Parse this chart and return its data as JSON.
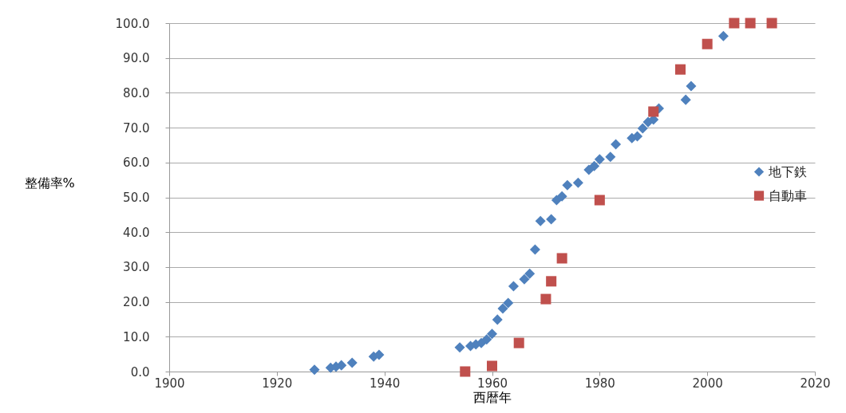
{
  "chart_data": {
    "type": "scatter",
    "xlabel": "西暦年",
    "ylabel": "整備率%",
    "xlim": [
      1900,
      2020
    ],
    "xticks": [
      1900,
      1920,
      1940,
      1960,
      1980,
      2000,
      2020
    ],
    "ylim": [
      0,
      100
    ],
    "yticks": [
      {
        "value": 0,
        "label": "0.0"
      },
      {
        "value": 10,
        "label": "10.0"
      },
      {
        "value": 20,
        "label": "20.0"
      },
      {
        "value": 30,
        "label": "30.0"
      },
      {
        "value": 40,
        "label": "40.0"
      },
      {
        "value": 50,
        "label": "50.0"
      },
      {
        "value": 60,
        "label": "60.0"
      },
      {
        "value": 70,
        "label": "70.0"
      },
      {
        "value": 80,
        "label": "80.0"
      },
      {
        "value": 90,
        "label": "90.0"
      },
      {
        "value": 100,
        "label": "100.0"
      }
    ],
    "grid": "y",
    "legend": "right",
    "series": [
      {
        "name": "地下鉄",
        "color": "#4f81bd",
        "marker": "diamond",
        "x": [
          1927,
          1930,
          1931,
          1932,
          1934,
          1938,
          1939,
          1954,
          1956,
          1957,
          1958,
          1959,
          1960,
          1961,
          1962,
          1963,
          1964,
          1966,
          1967,
          1968,
          1969,
          1971,
          1972,
          1973,
          1974,
          1976,
          1978,
          1979,
          1980,
          1982,
          1983,
          1986,
          1987,
          1988,
          1989,
          1990,
          1991,
          1996,
          1997,
          2003
        ],
        "values": [
          0.5,
          1.1,
          1.4,
          1.8,
          2.5,
          4.3,
          4.8,
          6.9,
          7.3,
          7.8,
          8.2,
          9.2,
          10.8,
          14.9,
          18.1,
          19.7,
          24.5,
          26.5,
          28.1,
          35.0,
          43.2,
          43.7,
          49.2,
          50.3,
          53.5,
          54.2,
          57.9,
          59.0,
          60.9,
          61.6,
          65.2,
          67.0,
          67.5,
          69.8,
          71.6,
          72.3,
          75.5,
          78.0,
          81.9,
          96.3
        ]
      },
      {
        "name": "自動車",
        "color": "#c0504d",
        "marker": "square",
        "x": [
          1955,
          1960,
          1965,
          1970,
          1971,
          1973,
          1980,
          1990,
          1995,
          2000,
          2005,
          2008,
          2012
        ],
        "values": [
          0,
          1.6,
          8.2,
          20.8,
          25.9,
          32.5,
          49.2,
          74.6,
          86.7,
          94.0,
          100,
          100,
          100
        ]
      }
    ]
  }
}
